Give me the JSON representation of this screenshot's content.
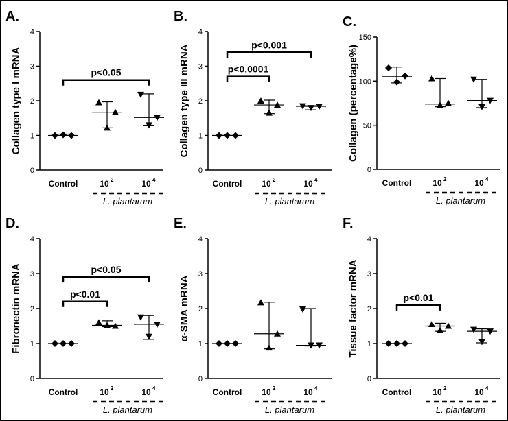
{
  "figure": {
    "group_label": "L. plantarum",
    "marker_shapes": [
      "diamond",
      "triangle-up",
      "triangle-down"
    ]
  },
  "chart_data": [
    {
      "type": "scatter",
      "panel": "A.",
      "ylabel": "Collagen type I mRNA",
      "ylim": [
        0,
        4
      ],
      "yticks": [
        "0",
        "1",
        "2",
        "3",
        "4"
      ],
      "categories": [
        {
          "base": "Control",
          "sup": ""
        },
        {
          "base": "10",
          "sup": "2"
        },
        {
          "base": "10",
          "sup": "4"
        }
      ],
      "groups": [
        {
          "points": [
            1.0,
            1.02,
            1.0
          ],
          "median": 1.0,
          "range": [
            1.0,
            1.04
          ]
        },
        {
          "points": [
            1.95,
            1.22,
            1.67
          ],
          "median": 1.67,
          "range": [
            1.22,
            1.97
          ]
        },
        {
          "points": [
            2.18,
            1.3,
            1.52
          ],
          "median": 1.52,
          "range": [
            1.28,
            2.2
          ]
        }
      ],
      "comparisons": [
        {
          "label": "p<0.05",
          "from": 0,
          "to": 2,
          "y": 2.6
        }
      ]
    },
    {
      "type": "scatter",
      "panel": "B.",
      "ylabel": "Collagen type III mRNA",
      "ylim": [
        0,
        4
      ],
      "yticks": [
        "0",
        "1",
        "2",
        "3",
        "4"
      ],
      "categories": [
        {
          "base": "Control",
          "sup": ""
        },
        {
          "base": "10",
          "sup": "2"
        },
        {
          "base": "10",
          "sup": "4"
        }
      ],
      "groups": [
        {
          "points": [
            1.0,
            1.0,
            1.0
          ],
          "median": 1.0,
          "range": [
            1.0,
            1.0
          ]
        },
        {
          "points": [
            2.0,
            1.65,
            1.88
          ],
          "median": 1.88,
          "range": [
            1.63,
            2.02
          ]
        },
        {
          "points": [
            1.85,
            1.8,
            1.84
          ],
          "median": 1.84,
          "range": [
            1.74,
            1.86
          ]
        }
      ],
      "comparisons": [
        {
          "label": "p<0.0001",
          "from": 0,
          "to": 1,
          "y": 2.7
        },
        {
          "label": "p<0.001",
          "from": 0,
          "to": 2,
          "y": 3.4
        }
      ]
    },
    {
      "type": "scatter",
      "panel": "C.",
      "ylabel": "Collagen (percentage%)",
      "ylim": [
        0,
        150
      ],
      "yticks": [
        "0",
        "50",
        "100",
        "150"
      ],
      "categories": [
        {
          "base": "Control",
          "sup": ""
        },
        {
          "base": "10",
          "sup": "2"
        },
        {
          "base": "10",
          "sup": "4"
        }
      ],
      "groups": [
        {
          "points": [
            115,
            99,
            106
          ],
          "median": 105,
          "range": [
            98,
            116
          ]
        },
        {
          "points": [
            103,
            73,
            75
          ],
          "median": 74,
          "range": [
            71,
            103
          ]
        },
        {
          "points": [
            102,
            71,
            78
          ],
          "median": 78,
          "range": [
            70,
            102
          ]
        }
      ],
      "comparisons": []
    },
    {
      "type": "scatter",
      "panel": "D.",
      "ylabel": "Fibronectin mRNA",
      "ylim": [
        0,
        4
      ],
      "yticks": [
        "0",
        "1",
        "2",
        "3",
        "4"
      ],
      "categories": [
        {
          "base": "Control",
          "sup": ""
        },
        {
          "base": "10",
          "sup": "2"
        },
        {
          "base": "10",
          "sup": "4"
        }
      ],
      "groups": [
        {
          "points": [
            1.0,
            1.0,
            1.0
          ],
          "median": 1.0,
          "range": [
            1.0,
            1.0
          ]
        },
        {
          "points": [
            1.6,
            1.52,
            1.5
          ],
          "median": 1.52,
          "range": [
            1.48,
            1.65
          ]
        },
        {
          "points": [
            1.75,
            1.2,
            1.55
          ],
          "median": 1.55,
          "range": [
            1.12,
            1.8
          ]
        }
      ],
      "comparisons": [
        {
          "label": "p<0.01",
          "from": 0,
          "to": 1,
          "y": 2.2
        },
        {
          "label": "p<0.05",
          "from": 0,
          "to": 2,
          "y": 2.9
        }
      ]
    },
    {
      "type": "scatter",
      "panel": "E.",
      "ylabel": "α-SMA mRNA",
      "ylim": [
        0,
        4
      ],
      "yticks": [
        "0",
        "1",
        "2",
        "3",
        "4"
      ],
      "categories": [
        {
          "base": "Control",
          "sup": ""
        },
        {
          "base": "10",
          "sup": "2"
        },
        {
          "base": "10",
          "sup": "4"
        }
      ],
      "groups": [
        {
          "points": [
            1.0,
            1.0,
            1.0
          ],
          "median": 1.0,
          "range": [
            1.0,
            1.0
          ]
        },
        {
          "points": [
            2.17,
            0.88,
            1.28
          ],
          "median": 1.28,
          "range": [
            0.85,
            2.18
          ]
        },
        {
          "points": [
            1.98,
            0.95,
            0.95
          ],
          "median": 0.95,
          "range": [
            0.93,
            2.0
          ]
        }
      ],
      "comparisons": []
    },
    {
      "type": "scatter",
      "panel": "F.",
      "ylabel": "Tissue factor mRNA",
      "ylim": [
        0,
        4
      ],
      "yticks": [
        "0",
        "1",
        "2",
        "3",
        "4"
      ],
      "categories": [
        {
          "base": "Control",
          "sup": ""
        },
        {
          "base": "10",
          "sup": "2"
        },
        {
          "base": "10",
          "sup": "4"
        }
      ],
      "groups": [
        {
          "points": [
            1.0,
            1.0,
            1.0
          ],
          "median": 1.0,
          "range": [
            1.0,
            1.0
          ]
        },
        {
          "points": [
            1.55,
            1.38,
            1.5
          ],
          "median": 1.5,
          "range": [
            1.35,
            1.58
          ]
        },
        {
          "points": [
            1.4,
            1.05,
            1.35
          ],
          "median": 1.35,
          "range": [
            1.02,
            1.42
          ]
        }
      ],
      "comparisons": [
        {
          "label": "p<0.01",
          "from": 0,
          "to": 1,
          "y": 2.1
        }
      ]
    }
  ]
}
